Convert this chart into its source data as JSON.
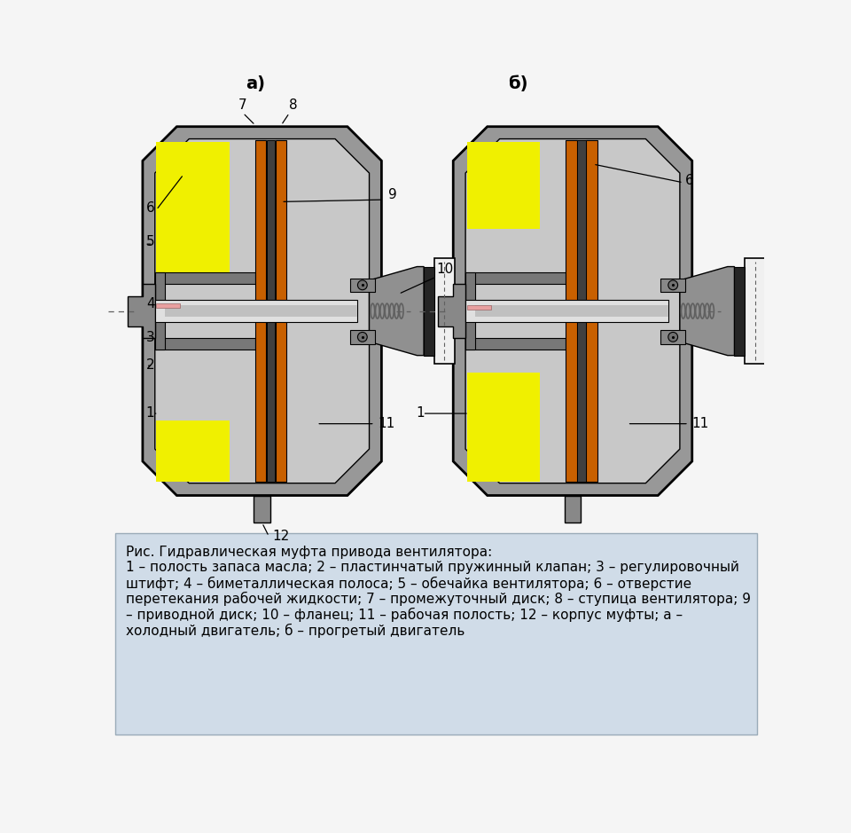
{
  "title_a": "а)",
  "title_b": "б)",
  "caption_title": "Рис. Гидравлическая муфта привода вентилятора:",
  "caption_text_line1": "1 – полость запаса масла; 2 – пластинчатый пружинный клапан; 3 – регулировочный",
  "caption_text_line2": "штифт; 4 – биметаллическая полоса; 5 – обечайка вентилятора; 6 – отверстие",
  "caption_text_line3": "перетекания рабочей жидкости; 7 – промежуточный диск; 8 – ступица вентилятора; 9",
  "caption_text_line4": "– приводной диск; 10 – фланец; 11 – рабочая полость; 12 – корпус муфты; а –",
  "caption_text_line5": "холодный двигатель; б – прогретый двигатель",
  "bg_color": "#f5f5f5",
  "caption_bg": "#d0dce8",
  "gray_outer": "#909090",
  "gray_inner": "#b8b8b8",
  "gray_mid": "#787878",
  "orange_color": "#c86000",
  "yellow_color": "#f0f000",
  "black_color": "#000000",
  "white_color": "#ffffff",
  "pink_color": "#e8a0a0",
  "shaft_color": "#d8d8d8",
  "spring_color": "#606060"
}
